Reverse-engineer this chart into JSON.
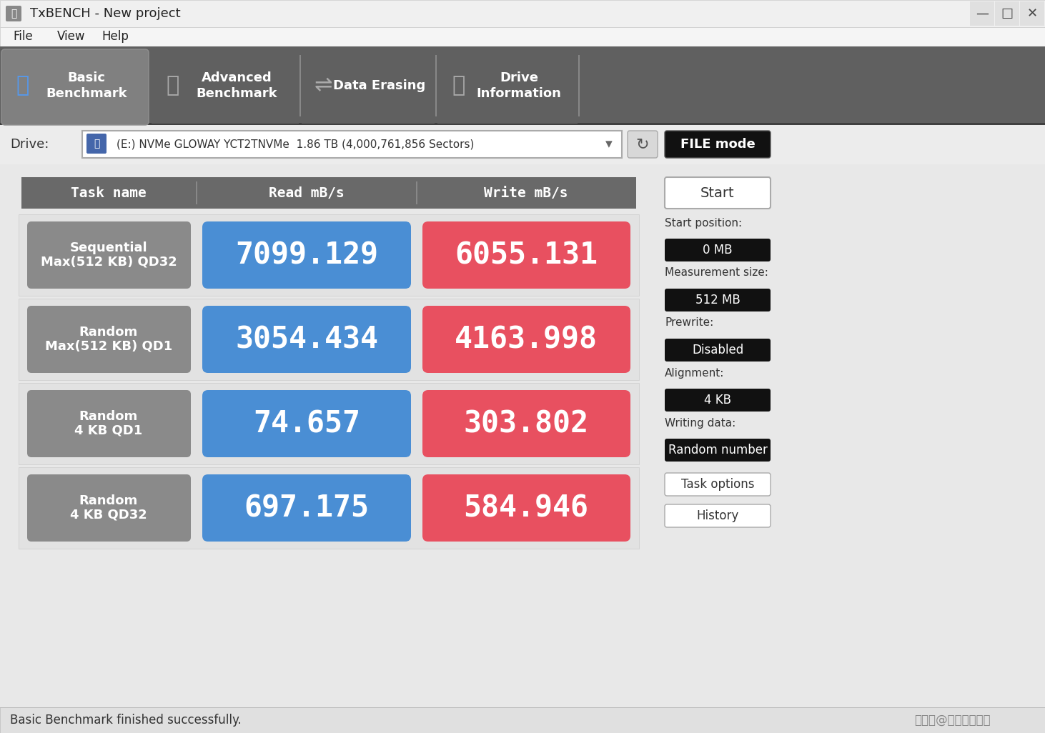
{
  "title_bar": "TxBENCH - New project",
  "menu_items": [
    "File",
    "View",
    "Help"
  ],
  "tabs": [
    "Basic\nBenchmark",
    "Advanced\nBenchmark",
    "Data Erasing",
    "Drive\nInformation"
  ],
  "active_tab": 0,
  "drive_label": "Drive:",
  "drive_text": "(E:) NVMe GLOWAY YCT2TNVMe  1.86 TB (4,000,761,856 Sectors)",
  "file_mode_btn": "FILE mode",
  "col_headers": [
    "Task name",
    "Read mB/s",
    "Write mB/s"
  ],
  "tasks": [
    {
      "name": "Sequential\nMax(512 KB) QD32",
      "read": "7099.129",
      "write": "6055.131"
    },
    {
      "name": "Random\nMax(512 KB) QD1",
      "read": "3054.434",
      "write": "4163.998"
    },
    {
      "name": "Random\n4 KB QD1",
      "read": "74.657",
      "write": "303.802"
    },
    {
      "name": "Random\n4 KB QD32",
      "read": "697.175",
      "write": "584.946"
    }
  ],
  "right_panel": {
    "start_btn": "Start",
    "fields": [
      {
        "label": "Start position:",
        "value": "0 MB"
      },
      {
        "label": "Measurement size:",
        "value": "512 MB"
      },
      {
        "label": "Prewrite:",
        "value": "Disabled"
      },
      {
        "label": "Alignment:",
        "value": "4 KB"
      },
      {
        "label": "Writing data:",
        "value": "Random number"
      }
    ],
    "extra_btns": [
      "Task options",
      "History"
    ]
  },
  "status_bar": "Basic Benchmark finished successfully.",
  "watermark": "搜狐号@我是四海飘零",
  "bg_color": "#ececec",
  "toolbar_bg": "#606060",
  "active_tab_bg": "#808080",
  "inactive_tab_bg": "#606060",
  "header_bg": "#696969",
  "task_name_bg": "#8a8a8a",
  "read_bg": "#4a8ed4",
  "write_bg": "#e85060",
  "black_btn_bg": "#111111",
  "drive_box_bg": "#ffffff",
  "titlebar_bg": "#f0f0f0",
  "menubar_bg": "#f5f5f5",
  "content_bg": "#e8e8e8",
  "row_sep_color": "#d0d0d0",
  "status_bg": "#e0e0e0"
}
